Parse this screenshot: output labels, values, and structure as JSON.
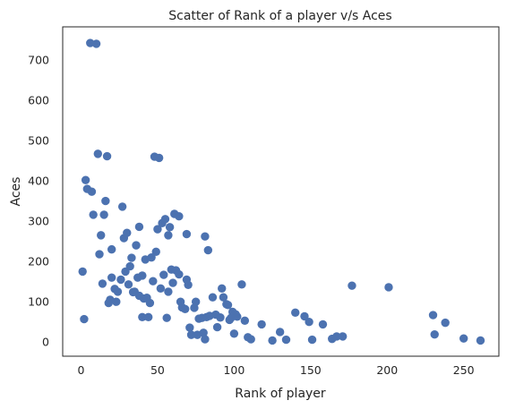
{
  "chart_data": {
    "type": "scatter",
    "title": "Scatter of Rank of a player v/s Aces",
    "xlabel": "Rank of player",
    "ylabel": "Aces",
    "xlim": [
      -12,
      273
    ],
    "ylim": [
      -35,
      782
    ],
    "xticks": [
      0,
      50,
      100,
      150,
      200,
      250
    ],
    "yticks": [
      0,
      100,
      200,
      300,
      400,
      500,
      600,
      700
    ],
    "grid": false,
    "marker_color": "#4c72b0",
    "points": [
      [
        6,
        742
      ],
      [
        10,
        740
      ],
      [
        11,
        467
      ],
      [
        17,
        461
      ],
      [
        48,
        460
      ],
      [
        51,
        457
      ],
      [
        3,
        402
      ],
      [
        4,
        380
      ],
      [
        7,
        373
      ],
      [
        8,
        316
      ],
      [
        15,
        316
      ],
      [
        16,
        350
      ],
      [
        27,
        336
      ],
      [
        1,
        175
      ],
      [
        2,
        57
      ],
      [
        13,
        265
      ],
      [
        20,
        230
      ],
      [
        28,
        258
      ],
      [
        30,
        271
      ],
      [
        36,
        240
      ],
      [
        38,
        286
      ],
      [
        40,
        165
      ],
      [
        42,
        205
      ],
      [
        46,
        210
      ],
      [
        49,
        224
      ],
      [
        50,
        280
      ],
      [
        53,
        295
      ],
      [
        55,
        305
      ],
      [
        57,
        265
      ],
      [
        58,
        285
      ],
      [
        61,
        318
      ],
      [
        64,
        312
      ],
      [
        69,
        268
      ],
      [
        81,
        262
      ],
      [
        83,
        228
      ],
      [
        12,
        218
      ],
      [
        14,
        145
      ],
      [
        18,
        97
      ],
      [
        19,
        105
      ],
      [
        20,
        160
      ],
      [
        22,
        132
      ],
      [
        23,
        100
      ],
      [
        24,
        125
      ],
      [
        26,
        155
      ],
      [
        29,
        175
      ],
      [
        31,
        143
      ],
      [
        32,
        188
      ],
      [
        33,
        209
      ],
      [
        34,
        124
      ],
      [
        35,
        125
      ],
      [
        37,
        160
      ],
      [
        38,
        115
      ],
      [
        40,
        62
      ],
      [
        41,
        108
      ],
      [
        43,
        110
      ],
      [
        44,
        62
      ],
      [
        45,
        97
      ],
      [
        47,
        151
      ],
      [
        52,
        133
      ],
      [
        54,
        167
      ],
      [
        56,
        60
      ],
      [
        57,
        125
      ],
      [
        59,
        180
      ],
      [
        60,
        147
      ],
      [
        62,
        178
      ],
      [
        64,
        168
      ],
      [
        65,
        100
      ],
      [
        66,
        86
      ],
      [
        68,
        82
      ],
      [
        69,
        155
      ],
      [
        70,
        142
      ],
      [
        71,
        36
      ],
      [
        72,
        18
      ],
      [
        74,
        85
      ],
      [
        75,
        100
      ],
      [
        76,
        18
      ],
      [
        77,
        58
      ],
      [
        79,
        60
      ],
      [
        80,
        23
      ],
      [
        81,
        7
      ],
      [
        82,
        62
      ],
      [
        84,
        65
      ],
      [
        86,
        111
      ],
      [
        88,
        68
      ],
      [
        89,
        37
      ],
      [
        91,
        61
      ],
      [
        92,
        133
      ],
      [
        93,
        111
      ],
      [
        95,
        94
      ],
      [
        96,
        92
      ],
      [
        97,
        55
      ],
      [
        98,
        60
      ],
      [
        99,
        75
      ],
      [
        100,
        21
      ],
      [
        101,
        69
      ],
      [
        102,
        63
      ],
      [
        105,
        143
      ],
      [
        107,
        53
      ],
      [
        109,
        12
      ],
      [
        111,
        7
      ],
      [
        118,
        44
      ],
      [
        125,
        4
      ],
      [
        130,
        25
      ],
      [
        134,
        6
      ],
      [
        140,
        73
      ],
      [
        146,
        64
      ],
      [
        149,
        50
      ],
      [
        151,
        6
      ],
      [
        158,
        44
      ],
      [
        164,
        8
      ],
      [
        167,
        14
      ],
      [
        171,
        14
      ],
      [
        177,
        140
      ],
      [
        201,
        136
      ],
      [
        230,
        67
      ],
      [
        231,
        19
      ],
      [
        238,
        48
      ],
      [
        250,
        9
      ],
      [
        261,
        4
      ]
    ]
  }
}
